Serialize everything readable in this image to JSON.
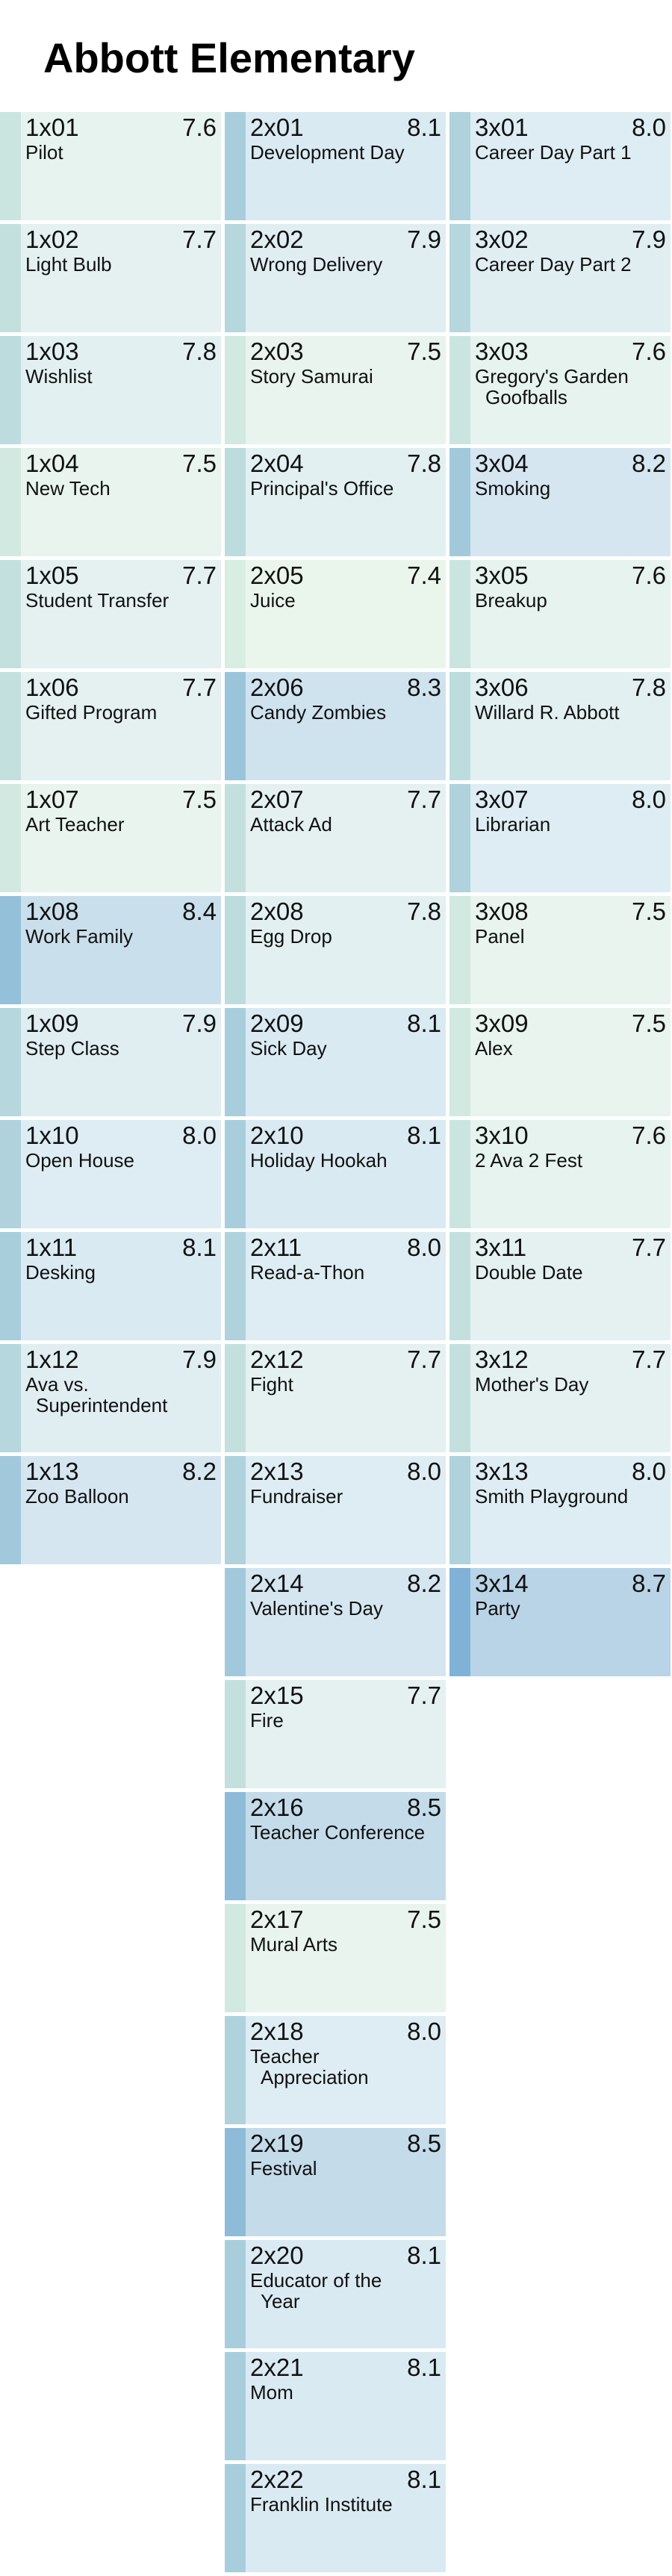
{
  "title": "Abbott Elementary",
  "chart_data": {
    "type": "heatmap",
    "title": "Abbott Elementary",
    "rating_range": [
      7.4,
      8.7
    ],
    "colors": {
      "low": "#eaf6ec",
      "mid": "#ddecf4",
      "high": "#b9d4e6",
      "bar_low": "#d8eee2",
      "bar_high": "#7fb2d6"
    },
    "seasons": [
      {
        "season": 1,
        "episodes": [
          {
            "code": "1x01",
            "name": "Pilot",
            "rating": 7.6
          },
          {
            "code": "1x02",
            "name": "Light Bulb",
            "rating": 7.7
          },
          {
            "code": "1x03",
            "name": "Wishlist",
            "rating": 7.8
          },
          {
            "code": "1x04",
            "name": "New Tech",
            "rating": 7.5
          },
          {
            "code": "1x05",
            "name": "Student Transfer",
            "rating": 7.7
          },
          {
            "code": "1x06",
            "name": "Gifted Program",
            "rating": 7.7
          },
          {
            "code": "1x07",
            "name": "Art Teacher",
            "rating": 7.5
          },
          {
            "code": "1x08",
            "name": "Work Family",
            "rating": 8.4
          },
          {
            "code": "1x09",
            "name": "Step Class",
            "rating": 7.9
          },
          {
            "code": "1x10",
            "name": "Open House",
            "rating": 8.0
          },
          {
            "code": "1x11",
            "name": "Desking",
            "rating": 8.1
          },
          {
            "code": "1x12",
            "name": [
              "Ava vs.",
              "Superintendent"
            ],
            "rating": 7.9
          },
          {
            "code": "1x13",
            "name": "Zoo Balloon",
            "rating": 8.2
          }
        ]
      },
      {
        "season": 2,
        "episodes": [
          {
            "code": "2x01",
            "name": "Development Day",
            "rating": 8.1
          },
          {
            "code": "2x02",
            "name": "Wrong Delivery",
            "rating": 7.9
          },
          {
            "code": "2x03",
            "name": "Story Samurai",
            "rating": 7.5
          },
          {
            "code": "2x04",
            "name": "Principal's Office",
            "rating": 7.8
          },
          {
            "code": "2x05",
            "name": "Juice",
            "rating": 7.4
          },
          {
            "code": "2x06",
            "name": "Candy Zombies",
            "rating": 8.3
          },
          {
            "code": "2x07",
            "name": "Attack Ad",
            "rating": 7.7
          },
          {
            "code": "2x08",
            "name": "Egg Drop",
            "rating": 7.8
          },
          {
            "code": "2x09",
            "name": "Sick Day",
            "rating": 8.1
          },
          {
            "code": "2x10",
            "name": "Holiday Hookah",
            "rating": 8.1
          },
          {
            "code": "2x11",
            "name": "Read-a-Thon",
            "rating": 8.0
          },
          {
            "code": "2x12",
            "name": "Fight",
            "rating": 7.7
          },
          {
            "code": "2x13",
            "name": "Fundraiser",
            "rating": 8.0
          },
          {
            "code": "2x14",
            "name": "Valentine's Day",
            "rating": 8.2
          },
          {
            "code": "2x15",
            "name": "Fire",
            "rating": 7.7
          },
          {
            "code": "2x16",
            "name": "Teacher Conference",
            "rating": 8.5
          },
          {
            "code": "2x17",
            "name": "Mural Arts",
            "rating": 7.5
          },
          {
            "code": "2x18",
            "name": [
              "Teacher",
              "Appreciation"
            ],
            "rating": 8.0
          },
          {
            "code": "2x19",
            "name": "Festival",
            "rating": 8.5
          },
          {
            "code": "2x20",
            "name": [
              "Educator of the",
              "Year"
            ],
            "rating": 8.1
          },
          {
            "code": "2x21",
            "name": "Mom",
            "rating": 8.1
          },
          {
            "code": "2x22",
            "name": "Franklin Institute",
            "rating": 8.1
          }
        ]
      },
      {
        "season": 3,
        "episodes": [
          {
            "code": "3x01",
            "name": "Career Day Part 1",
            "rating": 8.0
          },
          {
            "code": "3x02",
            "name": "Career Day Part 2",
            "rating": 7.9
          },
          {
            "code": "3x03",
            "name": [
              "Gregory's Garden",
              "Goofballs"
            ],
            "rating": 7.6
          },
          {
            "code": "3x04",
            "name": "Smoking",
            "rating": 8.2
          },
          {
            "code": "3x05",
            "name": "Breakup",
            "rating": 7.6
          },
          {
            "code": "3x06",
            "name": "Willard R. Abbott",
            "rating": 7.8
          },
          {
            "code": "3x07",
            "name": "Librarian",
            "rating": 8.0
          },
          {
            "code": "3x08",
            "name": "Panel",
            "rating": 7.5
          },
          {
            "code": "3x09",
            "name": "Alex",
            "rating": 7.5
          },
          {
            "code": "3x10",
            "name": "2 Ava 2 Fest",
            "rating": 7.6
          },
          {
            "code": "3x11",
            "name": "Double Date",
            "rating": 7.7
          },
          {
            "code": "3x12",
            "name": "Mother's Day",
            "rating": 7.7
          },
          {
            "code": "3x13",
            "name": "Smith Playground",
            "rating": 8.0
          },
          {
            "code": "3x14",
            "name": "Party",
            "rating": 8.7
          }
        ]
      }
    ]
  }
}
